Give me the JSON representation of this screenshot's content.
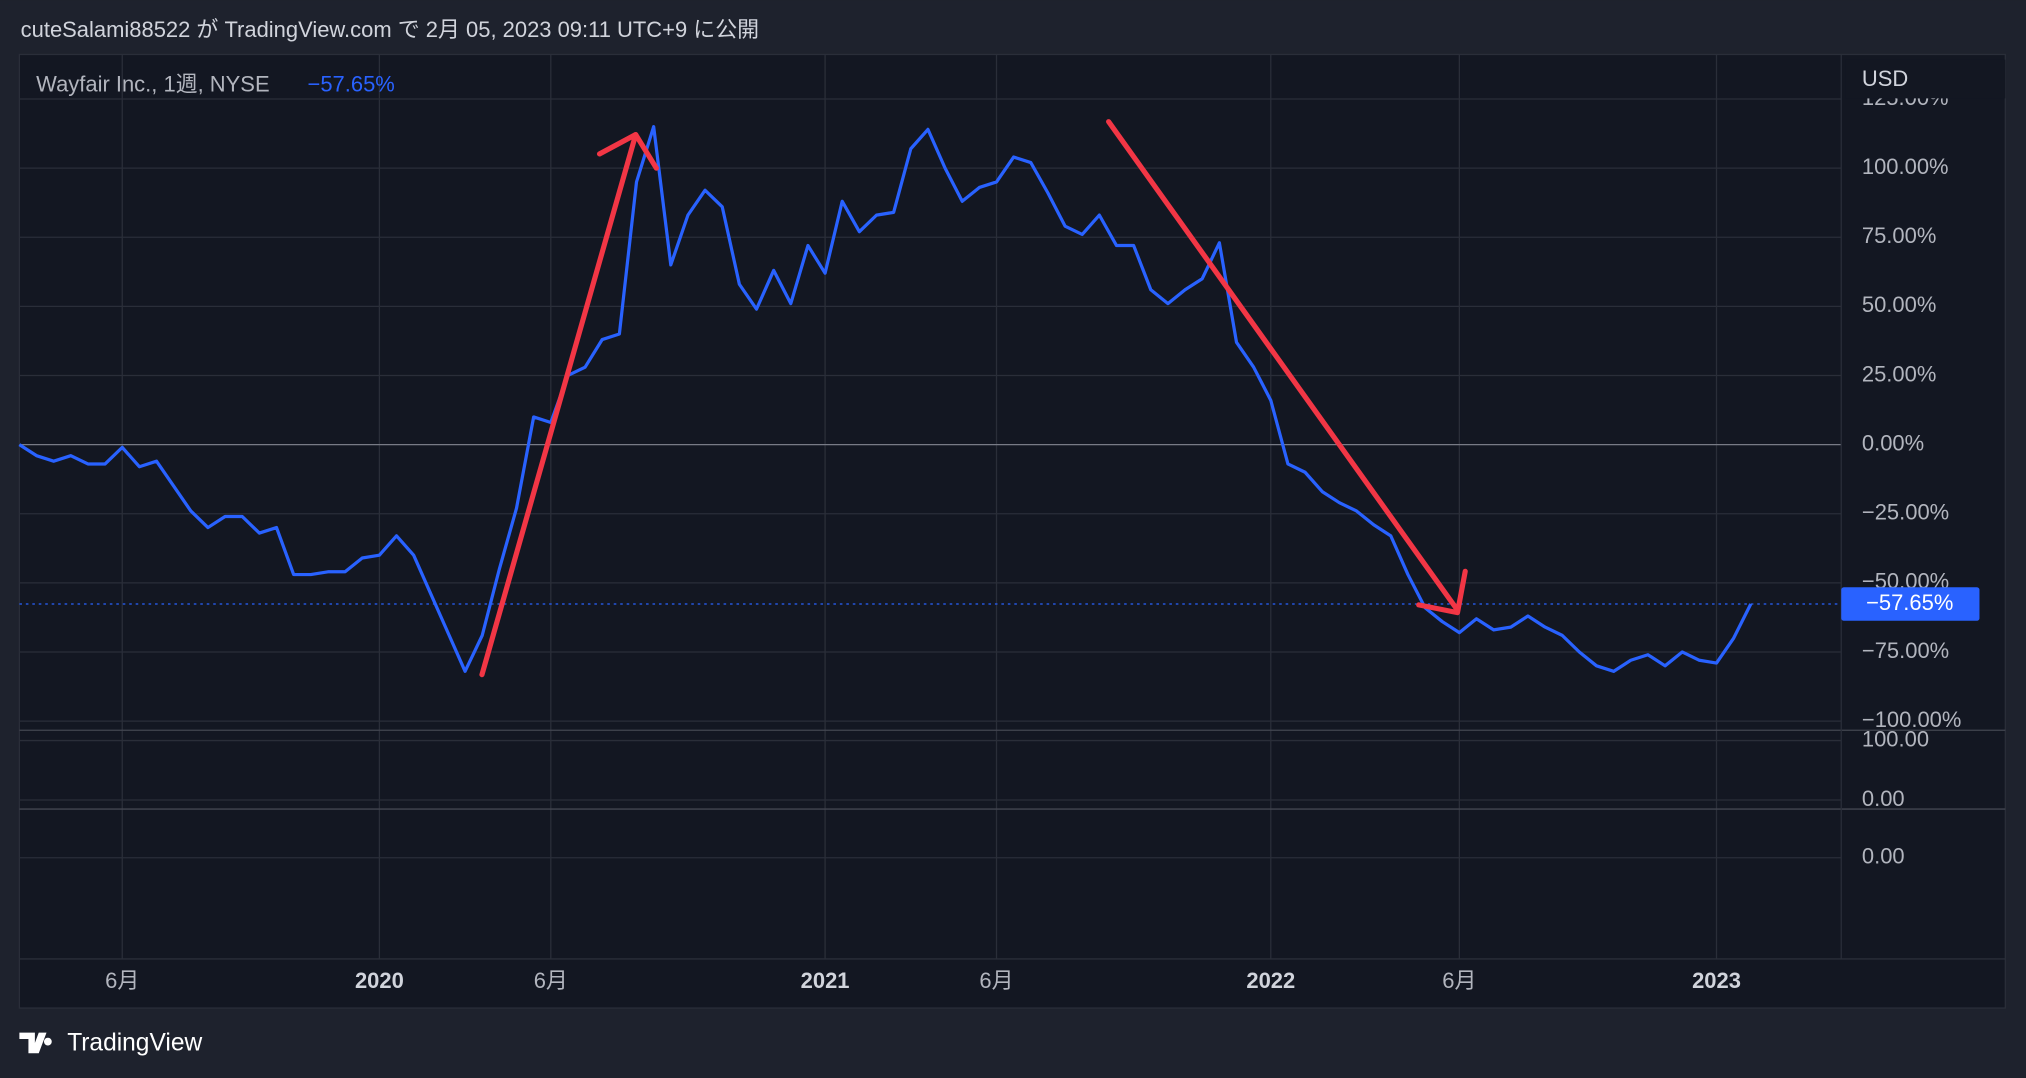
{
  "header": "cuteSalami88522 が TradingView.com で 2月 05, 2023 09:11 UTC+9 に公開",
  "footer": "TradingView",
  "chart_data": {
    "type": "line",
    "legend": "Wayfair Inc., 1週, NYSE",
    "last_label": "−57.65%",
    "currency": "USD",
    "categories": [
      null,
      null,
      null,
      null,
      null,
      null,
      "6月",
      null,
      null,
      null,
      null,
      null,
      null,
      null,
      null,
      null,
      null,
      null,
      null,
      null,
      null,
      "2020",
      null,
      null,
      null,
      null,
      null,
      null,
      null,
      null,
      null,
      "6月",
      null,
      null,
      null,
      null,
      null,
      null,
      null,
      null,
      null,
      null,
      null,
      null,
      null,
      null,
      null,
      "2021",
      null,
      null,
      null,
      null,
      null,
      null,
      null,
      null,
      null,
      "6月",
      null,
      null,
      null,
      null,
      null,
      null,
      null,
      null,
      null,
      null,
      null,
      null,
      null,
      null,
      null,
      "2022",
      null,
      null,
      null,
      null,
      null,
      null,
      null,
      null,
      null,
      null,
      "6月",
      null,
      null,
      null,
      null,
      null,
      null,
      null,
      null,
      null,
      null,
      null,
      null,
      null,
      null,
      "2023",
      null,
      null
    ],
    "series": [
      {
        "color": "#2962ff",
        "values": [
          0,
          -4,
          -6,
          -4,
          -7,
          -7,
          -1,
          -8,
          -6,
          -15,
          -24,
          -30,
          -26,
          -26,
          -32,
          -30,
          -47,
          -47,
          -46,
          -46,
          -41,
          -40,
          -33,
          -40,
          -54,
          -68,
          -82,
          -69,
          -45,
          -23,
          10,
          8,
          25,
          28,
          38,
          40,
          95,
          115,
          65,
          83,
          92,
          86,
          58,
          49,
          63,
          51,
          72,
          62,
          88,
          77,
          83,
          84,
          107,
          114,
          100,
          88,
          93,
          95,
          104,
          102,
          91,
          79,
          76,
          83,
          72,
          72,
          56,
          51,
          56,
          60,
          73,
          37,
          28,
          16,
          -7,
          -10,
          -17,
          -21,
          -24,
          -29,
          -33,
          -47,
          -59,
          -64,
          -68,
          -63,
          -67,
          -66,
          -62,
          -66,
          -69,
          -75,
          -80,
          -82,
          -78,
          -76,
          -80,
          -75,
          -78,
          -79,
          -70,
          -57.65
        ]
      }
    ],
    "ylim": [
      -103.3,
      141.1
    ],
    "yticks": [
      {
        "value": 125,
        "label": "125.00%"
      },
      {
        "value": 100,
        "label": "100.00%"
      },
      {
        "value": 75,
        "label": "75.00%"
      },
      {
        "value": 50,
        "label": "50.00%"
      },
      {
        "value": 25,
        "label": "25.00%"
      },
      {
        "value": 0,
        "label": "0.00%"
      },
      {
        "value": -25,
        "label": "−25.00%"
      },
      {
        "value": -50,
        "label": "−50.00%"
      },
      {
        "value": -75,
        "label": "−75.00%"
      },
      {
        "value": -100,
        "label": "−100.00%"
      }
    ],
    "grid": true,
    "panes": [
      {
        "ylim": [
          -15.2,
          117.4
        ],
        "yticks": [
          {
            "value": 100,
            "label": "100.00"
          },
          {
            "value": 0,
            "label": "0.00"
          }
        ]
      },
      {
        "ylim": [
          -2.08,
          1
        ],
        "yticks": [
          {
            "value": 0,
            "label": "0.00"
          }
        ]
      }
    ]
  }
}
